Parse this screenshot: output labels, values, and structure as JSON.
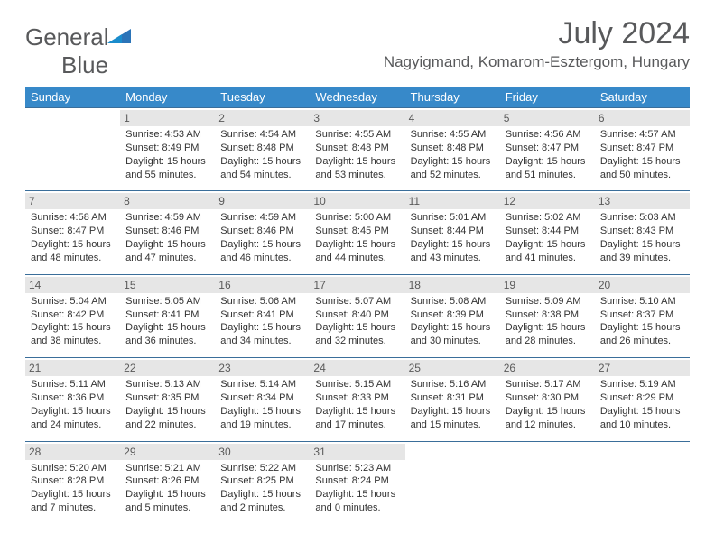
{
  "brand": {
    "word1": "General",
    "word2": "Blue"
  },
  "title": "July 2024",
  "location": "Nagyigmand, Komarom-Esztergom, Hungary",
  "colors": {
    "header_bg": "#3789c9",
    "header_text": "#ffffff",
    "rule": "#3a6e9a",
    "daynum_bg": "#e6e6e6",
    "text": "#3a3a3a",
    "title_text": "#58595b"
  },
  "weekdays": [
    "Sunday",
    "Monday",
    "Tuesday",
    "Wednesday",
    "Thursday",
    "Friday",
    "Saturday"
  ],
  "weeks": [
    [
      null,
      {
        "n": "1",
        "sunrise": "4:53 AM",
        "sunset": "8:49 PM",
        "dl1": "Daylight: 15 hours",
        "dl2": "and 55 minutes."
      },
      {
        "n": "2",
        "sunrise": "4:54 AM",
        "sunset": "8:48 PM",
        "dl1": "Daylight: 15 hours",
        "dl2": "and 54 minutes."
      },
      {
        "n": "3",
        "sunrise": "4:55 AM",
        "sunset": "8:48 PM",
        "dl1": "Daylight: 15 hours",
        "dl2": "and 53 minutes."
      },
      {
        "n": "4",
        "sunrise": "4:55 AM",
        "sunset": "8:48 PM",
        "dl1": "Daylight: 15 hours",
        "dl2": "and 52 minutes."
      },
      {
        "n": "5",
        "sunrise": "4:56 AM",
        "sunset": "8:47 PM",
        "dl1": "Daylight: 15 hours",
        "dl2": "and 51 minutes."
      },
      {
        "n": "6",
        "sunrise": "4:57 AM",
        "sunset": "8:47 PM",
        "dl1": "Daylight: 15 hours",
        "dl2": "and 50 minutes."
      }
    ],
    [
      {
        "n": "7",
        "sunrise": "4:58 AM",
        "sunset": "8:47 PM",
        "dl1": "Daylight: 15 hours",
        "dl2": "and 48 minutes."
      },
      {
        "n": "8",
        "sunrise": "4:59 AM",
        "sunset": "8:46 PM",
        "dl1": "Daylight: 15 hours",
        "dl2": "and 47 minutes."
      },
      {
        "n": "9",
        "sunrise": "4:59 AM",
        "sunset": "8:46 PM",
        "dl1": "Daylight: 15 hours",
        "dl2": "and 46 minutes."
      },
      {
        "n": "10",
        "sunrise": "5:00 AM",
        "sunset": "8:45 PM",
        "dl1": "Daylight: 15 hours",
        "dl2": "and 44 minutes."
      },
      {
        "n": "11",
        "sunrise": "5:01 AM",
        "sunset": "8:44 PM",
        "dl1": "Daylight: 15 hours",
        "dl2": "and 43 minutes."
      },
      {
        "n": "12",
        "sunrise": "5:02 AM",
        "sunset": "8:44 PM",
        "dl1": "Daylight: 15 hours",
        "dl2": "and 41 minutes."
      },
      {
        "n": "13",
        "sunrise": "5:03 AM",
        "sunset": "8:43 PM",
        "dl1": "Daylight: 15 hours",
        "dl2": "and 39 minutes."
      }
    ],
    [
      {
        "n": "14",
        "sunrise": "5:04 AM",
        "sunset": "8:42 PM",
        "dl1": "Daylight: 15 hours",
        "dl2": "and 38 minutes."
      },
      {
        "n": "15",
        "sunrise": "5:05 AM",
        "sunset": "8:41 PM",
        "dl1": "Daylight: 15 hours",
        "dl2": "and 36 minutes."
      },
      {
        "n": "16",
        "sunrise": "5:06 AM",
        "sunset": "8:41 PM",
        "dl1": "Daylight: 15 hours",
        "dl2": "and 34 minutes."
      },
      {
        "n": "17",
        "sunrise": "5:07 AM",
        "sunset": "8:40 PM",
        "dl1": "Daylight: 15 hours",
        "dl2": "and 32 minutes."
      },
      {
        "n": "18",
        "sunrise": "5:08 AM",
        "sunset": "8:39 PM",
        "dl1": "Daylight: 15 hours",
        "dl2": "and 30 minutes."
      },
      {
        "n": "19",
        "sunrise": "5:09 AM",
        "sunset": "8:38 PM",
        "dl1": "Daylight: 15 hours",
        "dl2": "and 28 minutes."
      },
      {
        "n": "20",
        "sunrise": "5:10 AM",
        "sunset": "8:37 PM",
        "dl1": "Daylight: 15 hours",
        "dl2": "and 26 minutes."
      }
    ],
    [
      {
        "n": "21",
        "sunrise": "5:11 AM",
        "sunset": "8:36 PM",
        "dl1": "Daylight: 15 hours",
        "dl2": "and 24 minutes."
      },
      {
        "n": "22",
        "sunrise": "5:13 AM",
        "sunset": "8:35 PM",
        "dl1": "Daylight: 15 hours",
        "dl2": "and 22 minutes."
      },
      {
        "n": "23",
        "sunrise": "5:14 AM",
        "sunset": "8:34 PM",
        "dl1": "Daylight: 15 hours",
        "dl2": "and 19 minutes."
      },
      {
        "n": "24",
        "sunrise": "5:15 AM",
        "sunset": "8:33 PM",
        "dl1": "Daylight: 15 hours",
        "dl2": "and 17 minutes."
      },
      {
        "n": "25",
        "sunrise": "5:16 AM",
        "sunset": "8:31 PM",
        "dl1": "Daylight: 15 hours",
        "dl2": "and 15 minutes."
      },
      {
        "n": "26",
        "sunrise": "5:17 AM",
        "sunset": "8:30 PM",
        "dl1": "Daylight: 15 hours",
        "dl2": "and 12 minutes."
      },
      {
        "n": "27",
        "sunrise": "5:19 AM",
        "sunset": "8:29 PM",
        "dl1": "Daylight: 15 hours",
        "dl2": "and 10 minutes."
      }
    ],
    [
      {
        "n": "28",
        "sunrise": "5:20 AM",
        "sunset": "8:28 PM",
        "dl1": "Daylight: 15 hours",
        "dl2": "and 7 minutes."
      },
      {
        "n": "29",
        "sunrise": "5:21 AM",
        "sunset": "8:26 PM",
        "dl1": "Daylight: 15 hours",
        "dl2": "and 5 minutes."
      },
      {
        "n": "30",
        "sunrise": "5:22 AM",
        "sunset": "8:25 PM",
        "dl1": "Daylight: 15 hours",
        "dl2": "and 2 minutes."
      },
      {
        "n": "31",
        "sunrise": "5:23 AM",
        "sunset": "8:24 PM",
        "dl1": "Daylight: 15 hours",
        "dl2": "and 0 minutes."
      },
      null,
      null,
      null
    ]
  ]
}
